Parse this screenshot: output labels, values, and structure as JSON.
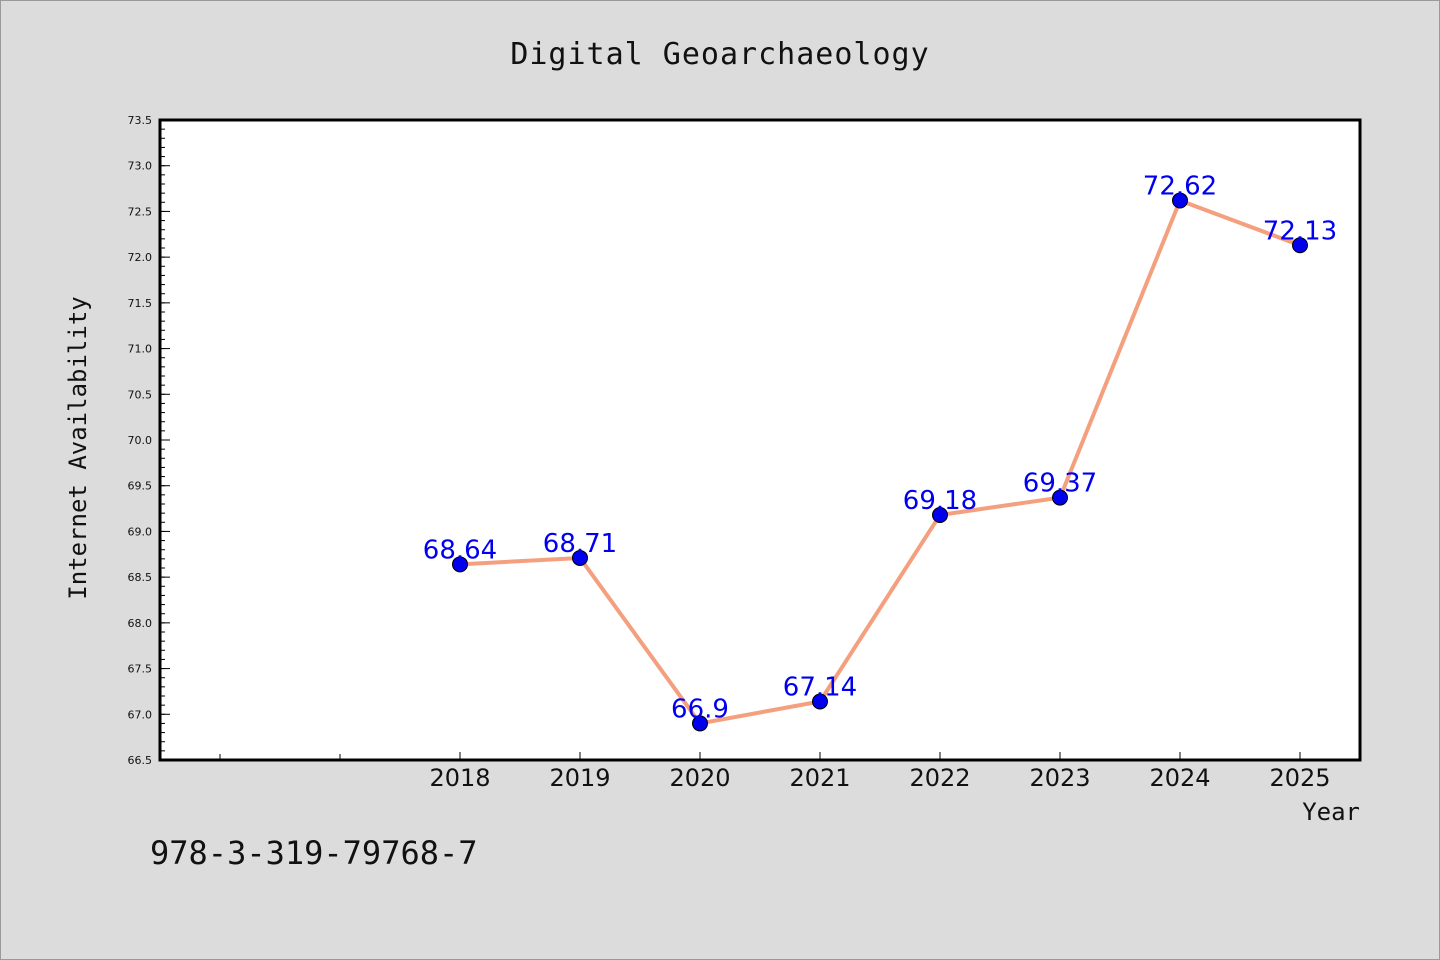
{
  "chart_data": {
    "type": "line",
    "title": "Digital Geoarchaeology",
    "xlabel": "Year",
    "ylabel": "Internet Availability",
    "x": [
      "2018",
      "2019",
      "2020",
      "2021",
      "2022",
      "2023",
      "2024",
      "2025"
    ],
    "values": [
      68.64,
      68.71,
      66.9,
      67.14,
      69.18,
      69.37,
      72.62,
      72.13
    ],
    "data_labels": [
      "68.64",
      "68.71",
      "66.9",
      "67.14",
      "69.18",
      "69.37",
      "72.62",
      "72.13"
    ],
    "ylim": [
      66.5,
      73.5
    ],
    "yticks": [
      "66.5",
      "67.0",
      "67.5",
      "68.0",
      "68.5",
      "69.0",
      "69.5",
      "70.0",
      "70.5",
      "71.0",
      "71.5",
      "72.0",
      "72.5",
      "73.0",
      "73.5"
    ],
    "grid": false,
    "line_color": "#f4a07e",
    "marker_color": "#0000ee",
    "label_color": "#0000ee"
  },
  "footer": {
    "isbn": "978-3-319-79768-7"
  }
}
